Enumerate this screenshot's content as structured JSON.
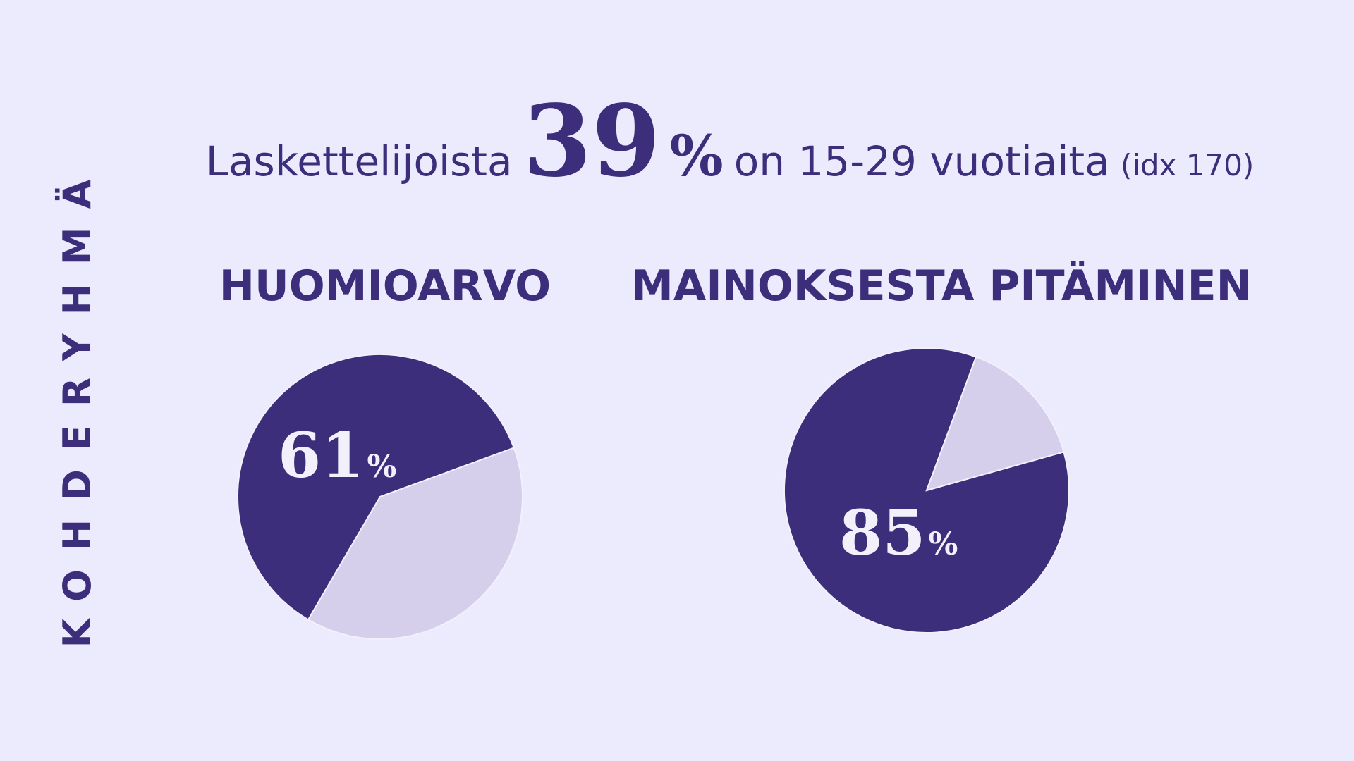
{
  "side_label": "KOHDERYHMÄ",
  "headline": {
    "prefix": "Laskettelijoista",
    "value": 39,
    "unit": "%",
    "suffix": "on 15-29 vuotiaita",
    "note": "(idx 170)"
  },
  "chart_data": [
    {
      "type": "pie",
      "title": "HUOMIOARVO",
      "values": [
        61,
        39
      ],
      "value_labels": [
        "61%",
        null
      ],
      "colors": [
        "#3c2e7a",
        "#d5cfeb"
      ]
    },
    {
      "type": "pie",
      "title": "MAINOKSESTA PITÄMINEN",
      "values": [
        85,
        15
      ],
      "value_labels": [
        "85%",
        null
      ],
      "colors": [
        "#3c2e7a",
        "#d5cfeb"
      ]
    }
  ]
}
